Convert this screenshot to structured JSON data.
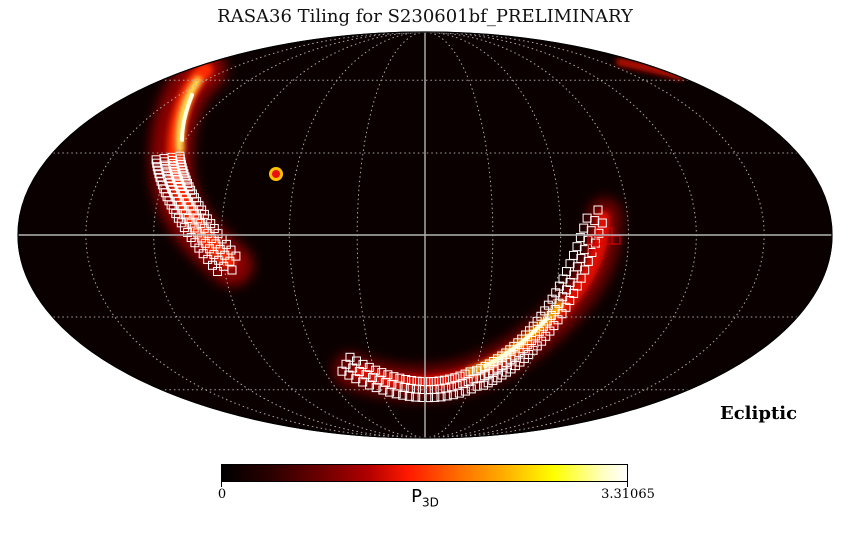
{
  "title": "RASA36 Tiling for S230601bf_PRELIMINARY",
  "frame_label": "Ecliptic",
  "colorbar": {
    "min_label": "0",
    "max_label": "3.31065",
    "label_main": "P",
    "label_sub": "3D",
    "colormap": "hot"
  },
  "map": {
    "projection": "mollweide",
    "background_color": "#0a0000",
    "graticule": {
      "lon_step_deg": 30,
      "lat_step_deg": 30,
      "style": "dotted",
      "color": "#a8a8a8"
    },
    "axes": {
      "equator": true,
      "central_meridian": true,
      "color": "#b4b4b4"
    },
    "tile_color": "#ffffff",
    "highlight_tile_color": "#e00000",
    "marker": {
      "name": "sun",
      "outer_color": "#ffc000",
      "inner_color": "#e81010"
    }
  }
}
